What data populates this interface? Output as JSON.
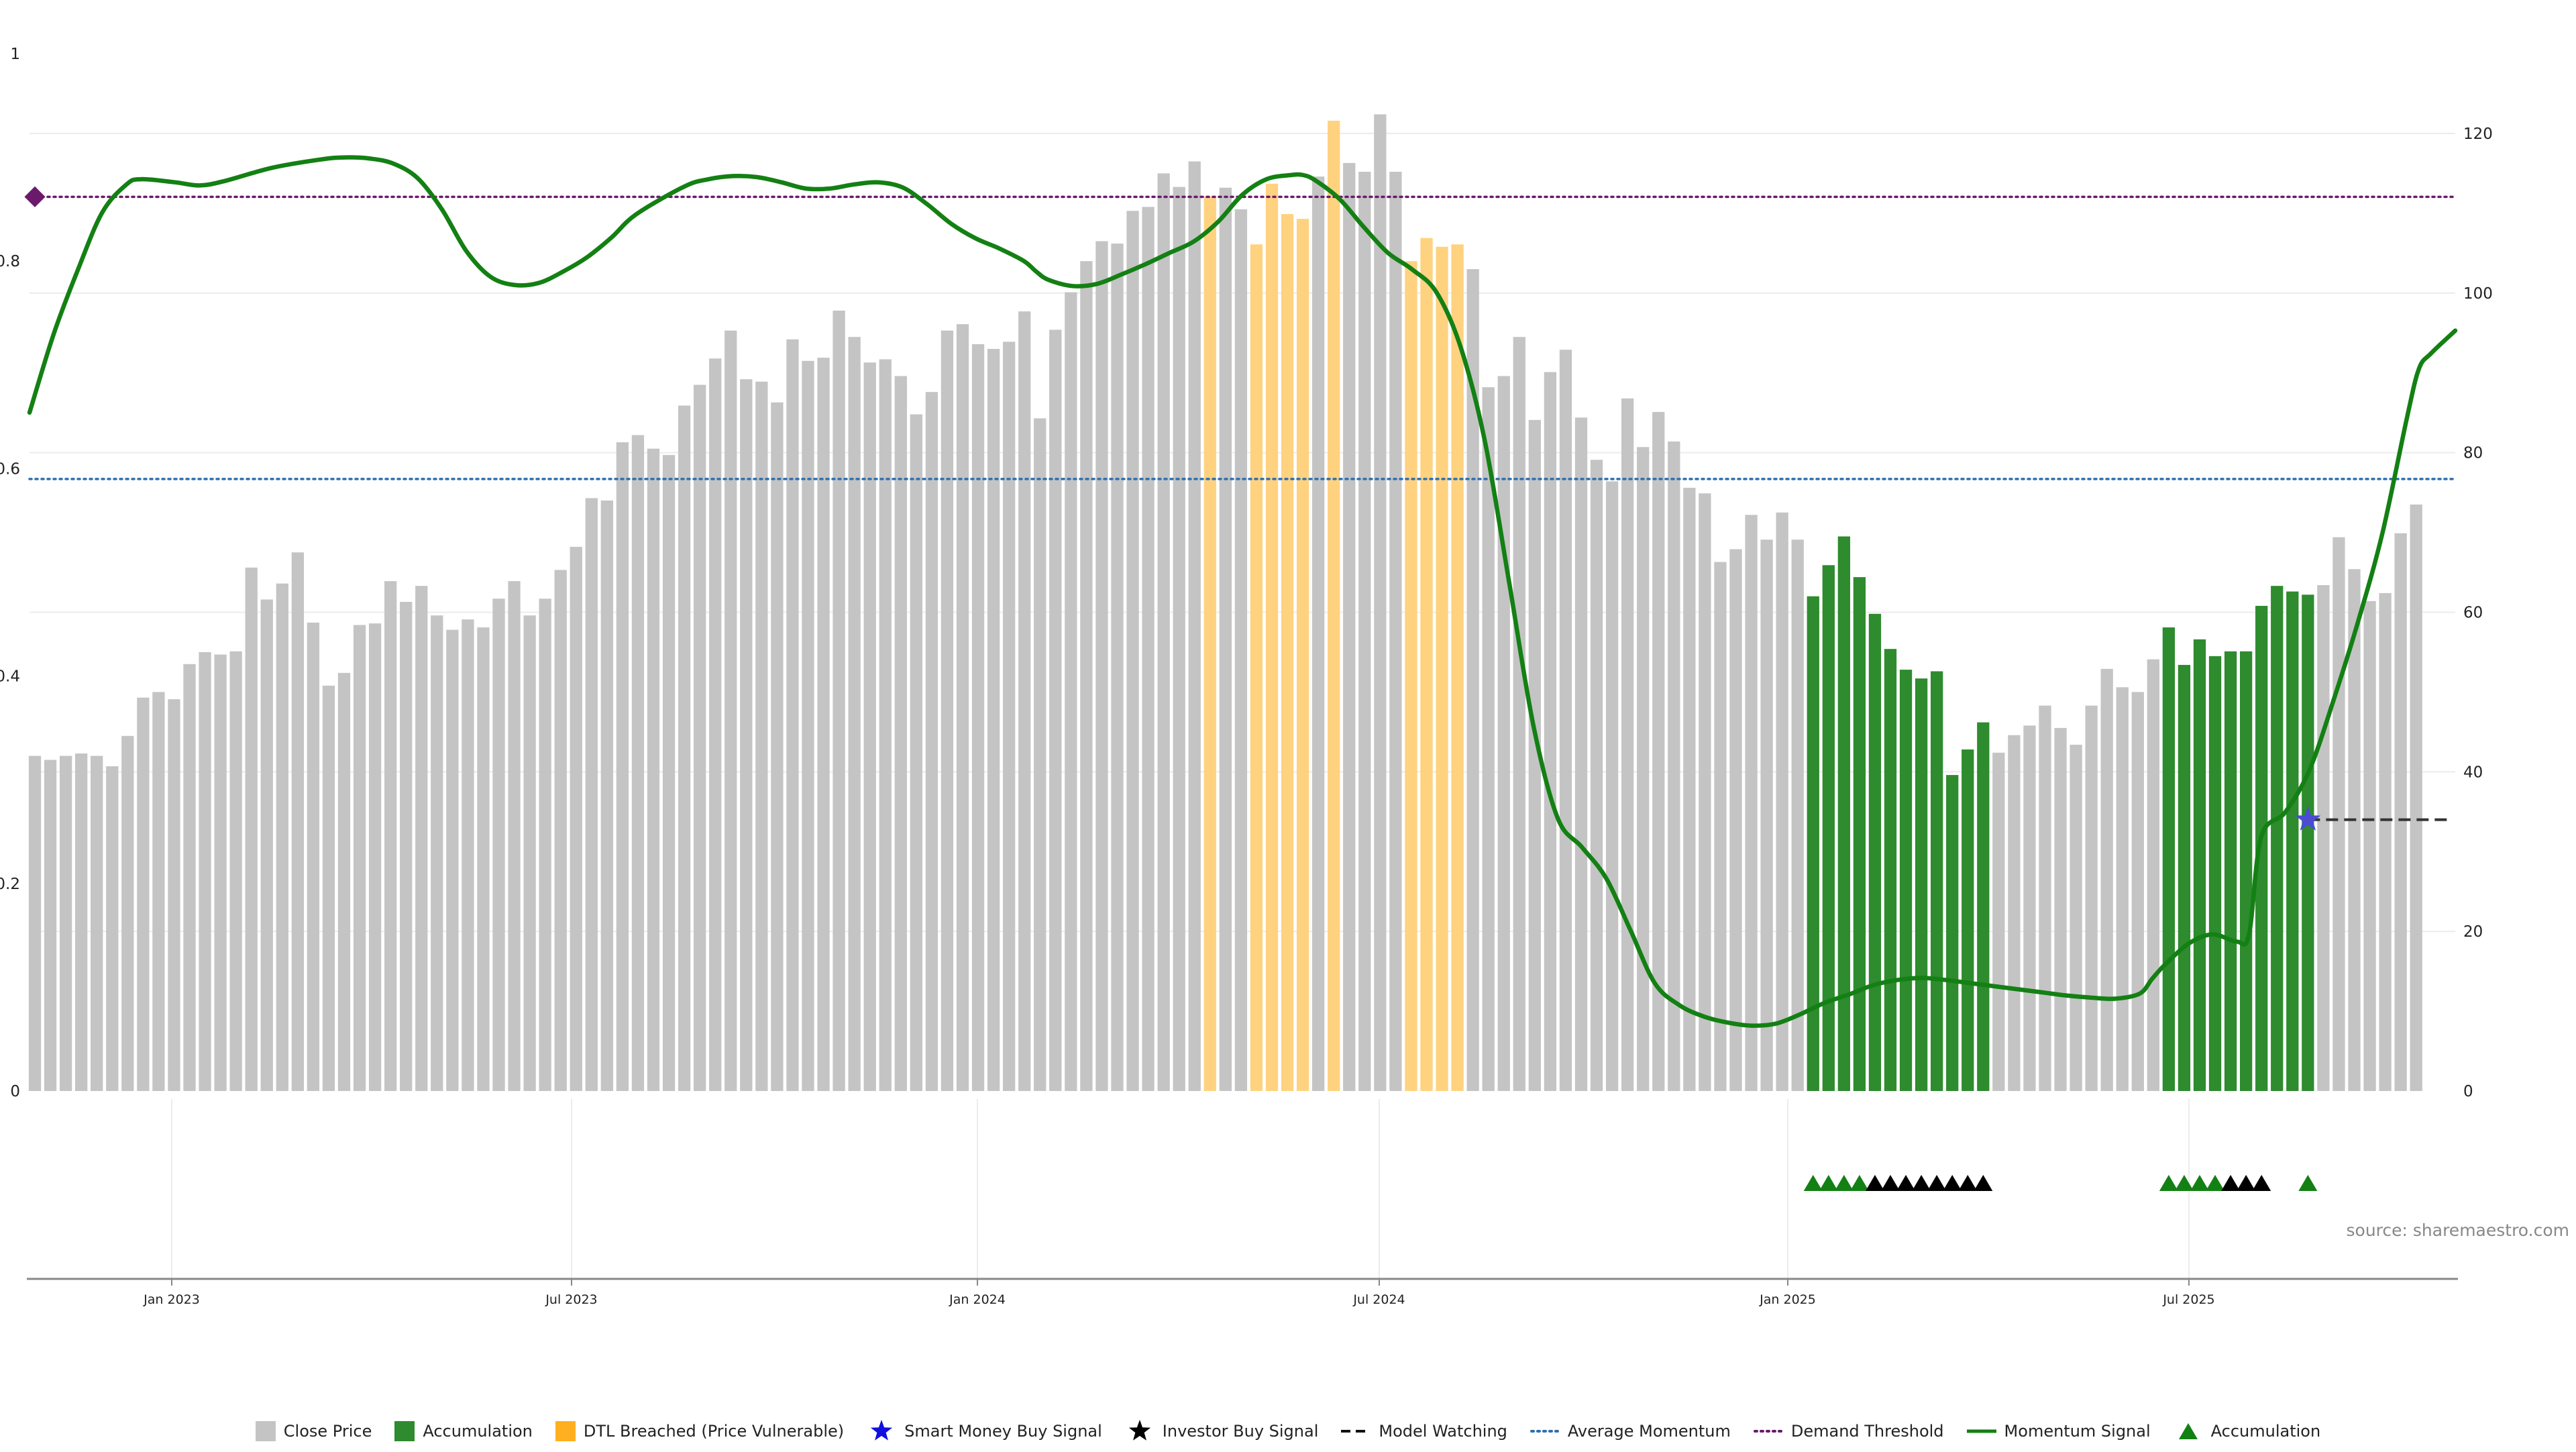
{
  "colors": {
    "close": "#c4c4c4",
    "accumulation": "#2e8b2e",
    "dtl": "#ffd280",
    "momentum": "#138013",
    "avg_momentum": "#2f6fb0",
    "demand": "#6b1a6b",
    "smart_money": "#4b4bd6",
    "investor": "#000000",
    "model_watching": "#333333"
  },
  "source_text": "source: sharemaestro.com",
  "legend": [
    {
      "label": "Close Price",
      "marker": "square",
      "color": "#c4c4c4"
    },
    {
      "label": "Accumulation",
      "marker": "square",
      "color": "#2e8b2e"
    },
    {
      "label": "DTL Breached (Price Vulnerable)",
      "marker": "square",
      "color": "#ffb020"
    },
    {
      "label": "Smart Money Buy Signal",
      "marker": "star",
      "color": "#1010e0"
    },
    {
      "label": "Investor Buy Signal",
      "marker": "star",
      "color": "#000000"
    },
    {
      "label": "Model Watching",
      "marker": "dash",
      "color": "#111111"
    },
    {
      "label": "Average Momentum",
      "marker": "dotted",
      "color": "#2f6fb0"
    },
    {
      "label": "Demand Threshold",
      "marker": "dotted",
      "color": "#6b1a6b"
    },
    {
      "label": "Momentum Signal",
      "marker": "line",
      "color": "#138013"
    },
    {
      "label": "Accumulation",
      "marker": "triangle",
      "color": "#138013"
    }
  ],
  "chart_data": {
    "type": "bar",
    "x_ticks": [
      "Jan 2023",
      "Jul 2023",
      "Jan 2024",
      "Jul 2024",
      "Jan 2025",
      "Jul 2025"
    ],
    "left_axis": {
      "ticks": [
        "0",
        "0.2",
        "0.4",
        "0.6",
        "0.8",
        "1"
      ],
      "ylim": [
        0,
        1
      ]
    },
    "right_axis": {
      "ticks": [
        "0",
        "20",
        "40",
        "60",
        "80",
        "100",
        "120"
      ],
      "ylim": [
        0,
        130
      ]
    },
    "close_price": {
      "values": [
        42,
        41.5,
        42,
        42.3,
        42,
        40.7,
        44.5,
        49.3,
        50,
        49.1,
        53.5,
        55,
        54.7,
        55.1,
        65.6,
        61.6,
        63.6,
        67.5,
        58.7,
        50.8,
        52.4,
        58.4,
        58.6,
        63.9,
        61.3,
        63.3,
        59.6,
        57.8,
        59.1,
        58.1,
        61.7,
        63.9,
        59.6,
        61.7,
        65.3,
        68.2,
        74.3,
        74,
        81.3,
        82.2,
        80.5,
        79.7,
        85.9,
        88.5,
        91.8,
        95.3,
        89.2,
        88.9,
        86.3,
        94.2,
        91.5,
        91.9,
        97.8,
        94.5,
        91.3,
        91.7,
        89.6,
        84.8,
        87.6,
        95.3,
        96.1,
        93.6,
        93,
        93.9,
        97.7,
        84.3,
        95.4,
        100.1,
        104,
        106.5,
        106.2,
        110.3,
        110.8,
        115,
        113.3,
        116.5,
        112.1,
        113.2,
        110.5,
        106.1,
        113.7,
        109.9,
        109.3,
        114.6,
        121.6,
        116.3,
        115.2,
        122.4,
        115.2,
        104,
        106.9,
        105.8,
        106.1,
        103,
        88.2,
        89.6,
        94.5,
        84.1,
        90.1,
        92.9,
        84.4,
        79.1,
        76.4,
        86.8,
        80.7,
        85.1,
        81.4,
        75.6,
        74.9,
        66.3,
        67.9,
        72.2,
        69.1,
        72.5,
        69.1,
        62,
        65.9,
        69.5,
        64.4,
        59.8,
        55.4,
        52.8,
        51.7,
        52.6,
        39.6,
        42.8,
        46.2,
        42.4,
        44.6,
        45.8,
        48.3,
        45.5,
        43.4,
        48.3,
        52.9,
        50.6,
        50,
        54.1,
        58.1,
        53.4,
        56.6,
        54.5,
        55.1,
        55.1,
        60.8,
        63.3,
        62.6,
        62.2,
        63.4,
        69.4,
        65.4,
        61.4,
        62.4,
        69.9,
        73.5
      ],
      "dtl_breached": [
        76,
        79,
        80,
        81,
        82,
        84,
        89,
        90,
        91,
        92
      ],
      "accumulation": [
        115,
        116,
        117,
        118,
        119,
        120,
        121,
        122,
        123,
        124,
        125,
        126,
        138,
        139,
        140,
        141,
        142,
        143,
        144,
        145,
        146
      ],
      "smart_money_bar": [
        147
      ]
    },
    "momentum_signal": [
      [
        0.0,
        0.654
      ],
      [
        0.01,
        0.73
      ],
      [
        0.02,
        0.792
      ],
      [
        0.03,
        0.847
      ],
      [
        0.04,
        0.874
      ],
      [
        0.046,
        0.879
      ],
      [
        0.06,
        0.876
      ],
      [
        0.07,
        0.873
      ],
      [
        0.08,
        0.877
      ],
      [
        0.1,
        0.89
      ],
      [
        0.12,
        0.898
      ],
      [
        0.13,
        0.9
      ],
      [
        0.14,
        0.899
      ],
      [
        0.15,
        0.894
      ],
      [
        0.16,
        0.88
      ],
      [
        0.17,
        0.85
      ],
      [
        0.18,
        0.81
      ],
      [
        0.19,
        0.785
      ],
      [
        0.2,
        0.777
      ],
      [
        0.21,
        0.779
      ],
      [
        0.22,
        0.79
      ],
      [
        0.23,
        0.804
      ],
      [
        0.24,
        0.823
      ],
      [
        0.25,
        0.845
      ],
      [
        0.27,
        0.872
      ],
      [
        0.28,
        0.879
      ],
      [
        0.29,
        0.882
      ],
      [
        0.3,
        0.881
      ],
      [
        0.31,
        0.876
      ],
      [
        0.32,
        0.87
      ],
      [
        0.33,
        0.87
      ],
      [
        0.34,
        0.874
      ],
      [
        0.35,
        0.876
      ],
      [
        0.36,
        0.871
      ],
      [
        0.37,
        0.855
      ],
      [
        0.38,
        0.836
      ],
      [
        0.39,
        0.822
      ],
      [
        0.4,
        0.812
      ],
      [
        0.41,
        0.8
      ],
      [
        0.415,
        0.79
      ],
      [
        0.42,
        0.782
      ],
      [
        0.43,
        0.776
      ],
      [
        0.44,
        0.778
      ],
      [
        0.45,
        0.787
      ],
      [
        0.46,
        0.797
      ],
      [
        0.47,
        0.808
      ],
      [
        0.48,
        0.819
      ],
      [
        0.49,
        0.838
      ],
      [
        0.5,
        0.864
      ],
      [
        0.51,
        0.879
      ],
      [
        0.52,
        0.883
      ],
      [
        0.525,
        0.883
      ],
      [
        0.53,
        0.878
      ],
      [
        0.54,
        0.86
      ],
      [
        0.55,
        0.833
      ],
      [
        0.56,
        0.808
      ],
      [
        0.57,
        0.792
      ],
      [
        0.58,
        0.77
      ],
      [
        0.59,
        0.717
      ],
      [
        0.6,
        0.626
      ],
      [
        0.61,
        0.49
      ],
      [
        0.62,
        0.352
      ],
      [
        0.63,
        0.263
      ],
      [
        0.64,
        0.235
      ],
      [
        0.65,
        0.205
      ],
      [
        0.66,
        0.155
      ],
      [
        0.67,
        0.104
      ],
      [
        0.68,
        0.083
      ],
      [
        0.69,
        0.072
      ],
      [
        0.7,
        0.066
      ],
      [
        0.71,
        0.063
      ],
      [
        0.72,
        0.065
      ],
      [
        0.73,
        0.074
      ],
      [
        0.74,
        0.085
      ],
      [
        0.75,
        0.093
      ],
      [
        0.76,
        0.102
      ],
      [
        0.77,
        0.107
      ],
      [
        0.78,
        0.109
      ],
      [
        0.79,
        0.107
      ],
      [
        0.8,
        0.104
      ],
      [
        0.81,
        0.101
      ],
      [
        0.82,
        0.098
      ],
      [
        0.83,
        0.095
      ],
      [
        0.84,
        0.092
      ],
      [
        0.85,
        0.09
      ],
      [
        0.86,
        0.089
      ],
      [
        0.87,
        0.094
      ],
      [
        0.875,
        0.108
      ],
      [
        0.88,
        0.121
      ],
      [
        0.89,
        0.142
      ],
      [
        0.9,
        0.151
      ],
      [
        0.91,
        0.144
      ],
      [
        0.915,
        0.151
      ],
      [
        0.92,
        0.245
      ],
      [
        0.93,
        0.269
      ],
      [
        0.94,
        0.31
      ],
      [
        0.95,
        0.378
      ],
      [
        0.96,
        0.453
      ],
      [
        0.97,
        0.538
      ],
      [
        0.98,
        0.648
      ],
      [
        0.985,
        0.696
      ],
      [
        0.99,
        0.711
      ],
      [
        1.0,
        0.733
      ]
    ],
    "average_momentum": 0.59,
    "demand_threshold": 0.862,
    "smart_money_signal": {
      "index": 147,
      "value": 34
    },
    "model_watching": {
      "from": 147,
      "to": 156,
      "value": 34
    },
    "accumulation_triangles": [
      115,
      116,
      117,
      118,
      138,
      139,
      140,
      141,
      147
    ],
    "investor_triangles": [
      119,
      120,
      121,
      122,
      123,
      124,
      125,
      126,
      142,
      143,
      144
    ]
  }
}
